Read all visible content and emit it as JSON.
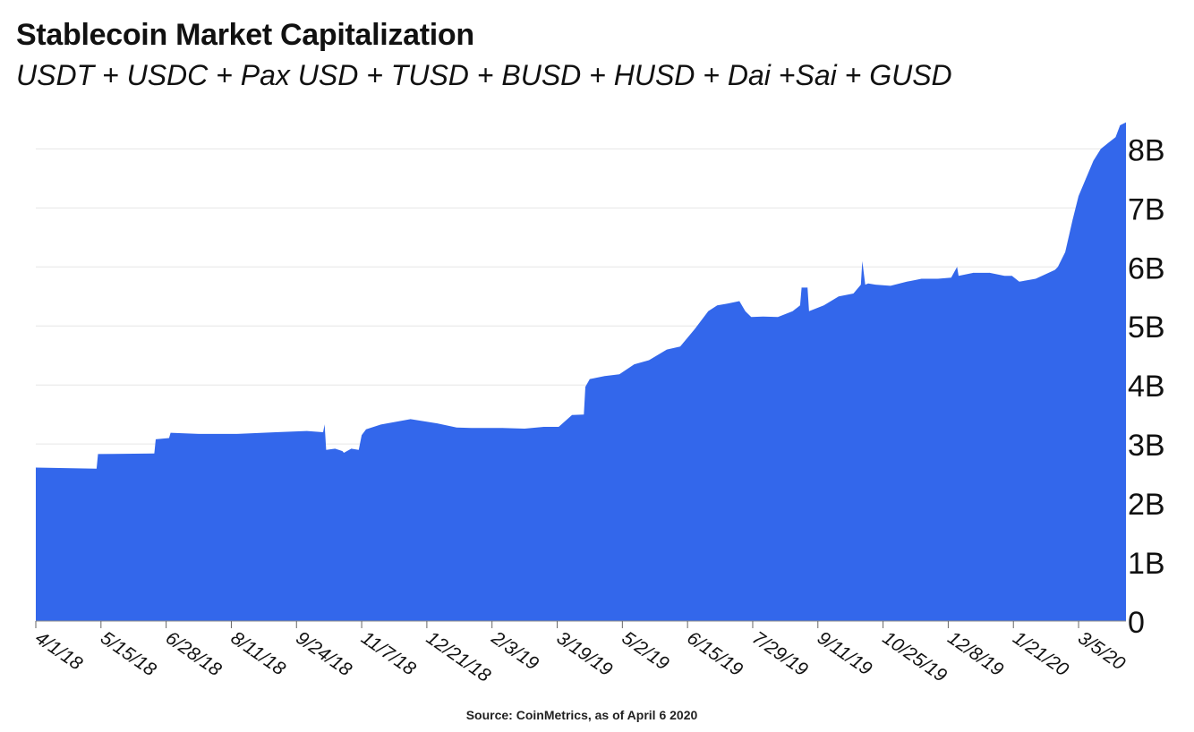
{
  "chart_data": {
    "type": "area",
    "title": "Stablecoin Market Capitalization",
    "subtitle": "USDT + USDC + Pax USD + TUSD + BUSD + HUSD + Dai +Sai + GUSD",
    "source": "Source: CoinMetrics, as of April 6 2020",
    "color": "#3367EB",
    "grid": true,
    "y_axis_side": "right",
    "ylim": [
      0,
      8400000000
    ],
    "yticks": [
      {
        "value": 0,
        "label": "0"
      },
      {
        "value": 1000000000,
        "label": "1B"
      },
      {
        "value": 2000000000,
        "label": "2B"
      },
      {
        "value": 3000000000,
        "label": "3B"
      },
      {
        "value": 4000000000,
        "label": "4B"
      },
      {
        "value": 5000000000,
        "label": "5B"
      },
      {
        "value": 6000000000,
        "label": "6B"
      },
      {
        "value": 7000000000,
        "label": "7B"
      },
      {
        "value": 8000000000,
        "label": "8B"
      }
    ],
    "xlim": [
      "2018-04-01",
      "2020-04-06"
    ],
    "xticks": [
      {
        "date": "2018-04-01",
        "label": "4/1/18"
      },
      {
        "date": "2018-05-15",
        "label": "5/15/18"
      },
      {
        "date": "2018-06-28",
        "label": "6/28/18"
      },
      {
        "date": "2018-08-11",
        "label": "8/11/18"
      },
      {
        "date": "2018-09-24",
        "label": "9/24/18"
      },
      {
        "date": "2018-11-07",
        "label": "11/7/18"
      },
      {
        "date": "2018-12-21",
        "label": "12/21/18"
      },
      {
        "date": "2019-02-03",
        "label": "2/3/19"
      },
      {
        "date": "2019-03-19",
        "label": "3/19/19"
      },
      {
        "date": "2019-05-02",
        "label": "5/2/19"
      },
      {
        "date": "2019-06-15",
        "label": "6/15/19"
      },
      {
        "date": "2019-07-29",
        "label": "7/29/19"
      },
      {
        "date": "2019-09-11",
        "label": "9/11/19"
      },
      {
        "date": "2019-10-25",
        "label": "10/25/19"
      },
      {
        "date": "2019-12-08",
        "label": "12/8/19"
      },
      {
        "date": "2020-01-21",
        "label": "1/21/20"
      },
      {
        "date": "2020-03-05",
        "label": "3/5/20"
      }
    ],
    "series": [
      {
        "x": [
          "2018-04-01",
          "2018-05-12",
          "2018-05-13",
          "2018-06-20",
          "2018-06-21",
          "2018-06-30",
          "2018-07-01",
          "2018-07-20",
          "2018-08-15",
          "2018-09-10",
          "2018-10-01",
          "2018-10-12",
          "2018-10-13",
          "2018-10-14",
          "2018-10-20",
          "2018-10-25",
          "2018-10-26",
          "2018-10-31",
          "2018-11-05",
          "2018-11-07",
          "2018-11-10",
          "2018-11-20",
          "2018-12-10",
          "2018-12-28",
          "2019-01-10",
          "2019-01-20",
          "2019-02-10",
          "2019-02-25",
          "2019-03-10",
          "2019-03-20",
          "2019-03-29",
          "2019-04-06",
          "2019-04-07",
          "2019-04-10",
          "2019-04-20",
          "2019-04-30",
          "2019-05-10",
          "2019-05-20",
          "2019-06-01",
          "2019-06-10",
          "2019-06-20",
          "2019-06-29",
          "2019-07-05",
          "2019-07-12",
          "2019-07-20",
          "2019-07-24",
          "2019-07-28",
          "2019-08-05",
          "2019-08-15",
          "2019-08-25",
          "2019-08-30",
          "2019-08-31",
          "2019-09-04",
          "2019-09-05",
          "2019-09-15",
          "2019-09-25",
          "2019-10-05",
          "2019-10-10",
          "2019-10-11",
          "2019-10-13",
          "2019-10-15",
          "2019-10-20",
          "2019-10-30",
          "2019-11-10",
          "2019-11-20",
          "2019-12-01",
          "2019-12-10",
          "2019-12-14",
          "2019-12-15",
          "2019-12-25",
          "2020-01-05",
          "2020-01-15",
          "2020-01-20",
          "2020-01-25",
          "2020-02-05",
          "2020-02-18",
          "2020-02-20",
          "2020-02-25",
          "2020-03-01",
          "2020-03-05",
          "2020-03-10",
          "2020-03-15",
          "2020-03-20",
          "2020-03-25",
          "2020-03-30",
          "2020-04-02",
          "2020-04-06"
        ],
        "y": [
          2600000000,
          2580000000,
          2830000000,
          2840000000,
          3080000000,
          3100000000,
          3190000000,
          3170000000,
          3170000000,
          3200000000,
          3220000000,
          3200000000,
          3330000000,
          2900000000,
          2920000000,
          2880000000,
          2850000000,
          2920000000,
          2900000000,
          3150000000,
          3250000000,
          3330000000,
          3420000000,
          3350000000,
          3280000000,
          3270000000,
          3270000000,
          3260000000,
          3290000000,
          3290000000,
          3490000000,
          3500000000,
          3970000000,
          4100000000,
          4150000000,
          4180000000,
          4350000000,
          4420000000,
          4600000000,
          4650000000,
          4950000000,
          5250000000,
          5350000000,
          5380000000,
          5420000000,
          5250000000,
          5150000000,
          5160000000,
          5150000000,
          5250000000,
          5350000000,
          5650000000,
          5650000000,
          5250000000,
          5350000000,
          5500000000,
          5550000000,
          5700000000,
          6100000000,
          5700000000,
          5720000000,
          5700000000,
          5680000000,
          5750000000,
          5800000000,
          5800000000,
          5820000000,
          6000000000,
          5850000000,
          5900000000,
          5900000000,
          5850000000,
          5850000000,
          5750000000,
          5800000000,
          5950000000,
          6000000000,
          6250000000,
          6800000000,
          7200000000,
          7500000000,
          7800000000,
          8000000000,
          8100000000,
          8200000000,
          8400000000,
          8450000000
        ]
      }
    ]
  }
}
